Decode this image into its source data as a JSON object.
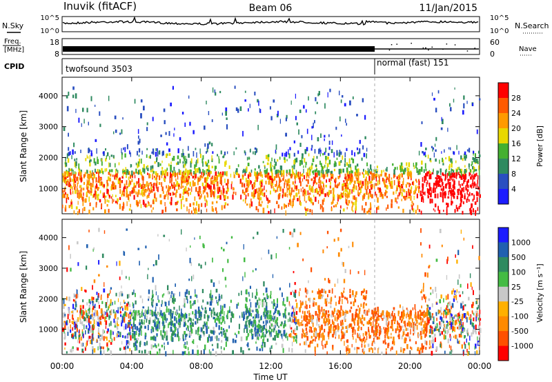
{
  "header": {
    "station": "Inuvik (fitACF)",
    "beam": "Beam 06",
    "date": "11/Jan/2015"
  },
  "colors": {
    "power": [
      "#1c1cff",
      "#2a4fc0",
      "#2f8a60",
      "#44b030",
      "#e8d800",
      "#ff9a00",
      "#ff5a00",
      "#ff0000"
    ],
    "velocity": [
      "#ff0000",
      "#ff5000",
      "#ff8a00",
      "#ffb000",
      "#c8c8c8",
      "#44bb44",
      "#2f8a60",
      "#2060b0",
      "#1c1cff"
    ]
  },
  "chart_data": [
    {
      "type": "line",
      "name": "noise-panel",
      "left_label": "N.Sky",
      "right_label": "N.Search",
      "left_ticks": [
        "10^5",
        "10^0"
      ],
      "right_ticks": [
        "10^5",
        "10^0"
      ]
    },
    {
      "type": "bar",
      "name": "frequency-panel",
      "left_label_lines": [
        "Freq.",
        "[MHz]"
      ],
      "right_label": "Nave",
      "left_ticks": [
        "18",
        "8"
      ],
      "right_ticks": [
        "60",
        "0"
      ]
    },
    {
      "type": "table",
      "name": "cpid-panel",
      "label": "CPID",
      "segments": [
        {
          "label": "twofsound 3503",
          "start_hour": 0,
          "end_hour": 18
        },
        {
          "label": "normal (fast) 151",
          "start_hour": 18,
          "end_hour": 24
        }
      ]
    },
    {
      "type": "heatmap",
      "name": "power-panel",
      "ylabel": "Slant Range [km]",
      "yticks": [
        1000,
        2000,
        3000,
        4000
      ],
      "ylim": [
        180,
        4600
      ],
      "colorbar_label": "Power [dB]",
      "colorbar_ticks": [
        "28",
        "24",
        "20",
        "16",
        "12",
        "8",
        "4"
      ]
    },
    {
      "type": "heatmap",
      "name": "velocity-panel",
      "ylabel": "Slant Range [km]",
      "yticks": [
        1000,
        2000,
        3000,
        4000
      ],
      "ylim": [
        180,
        4600
      ],
      "colorbar_label": "Velocity [m s⁻¹]",
      "colorbar_ticks": [
        "1000",
        "500",
        "100",
        "25",
        "-25",
        "-100",
        "-500",
        "-1000"
      ]
    }
  ],
  "x_axis": {
    "label": "Time UT",
    "ticks": [
      "00:00",
      "04:00",
      "08:00",
      "12:00",
      "16:00",
      "20:00",
      "00:00"
    ],
    "range_hours": [
      0,
      24
    ]
  }
}
